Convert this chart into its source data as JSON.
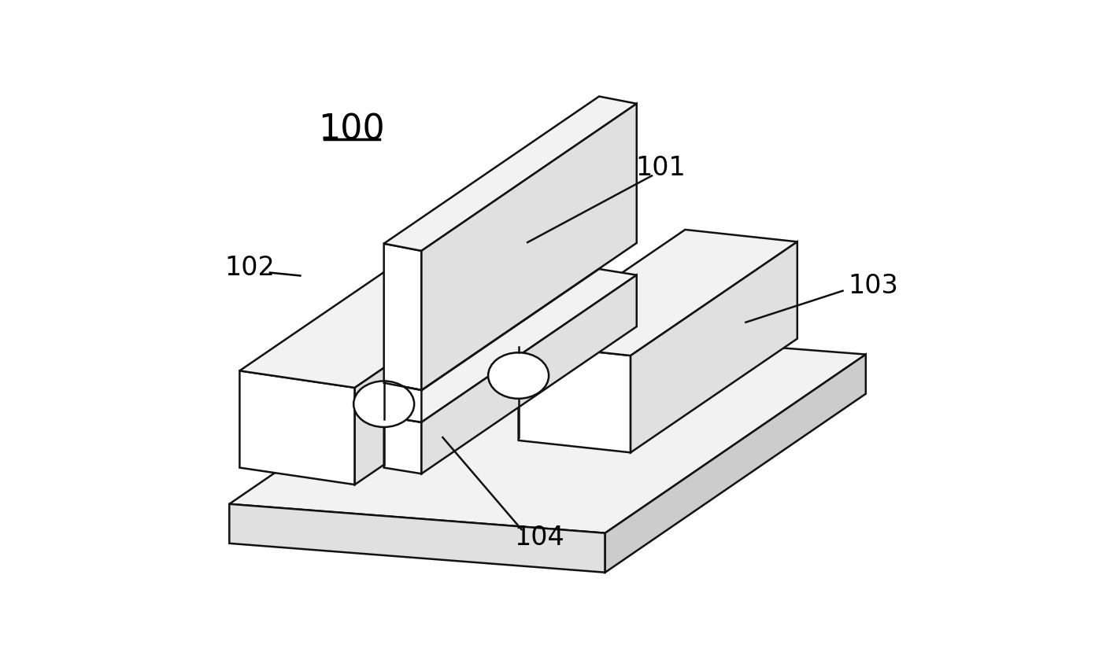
{
  "background_color": "#ffffff",
  "line_color": "#111111",
  "face_white": "#ffffff",
  "face_light": "#f2f2f2",
  "face_mid": "#e0e0e0",
  "face_dark": "#cccccc",
  "label_100": "100",
  "label_101": "101",
  "label_102": "102",
  "label_103": "103",
  "label_104": "104",
  "font_size_labels": 24,
  "lw": 1.8
}
